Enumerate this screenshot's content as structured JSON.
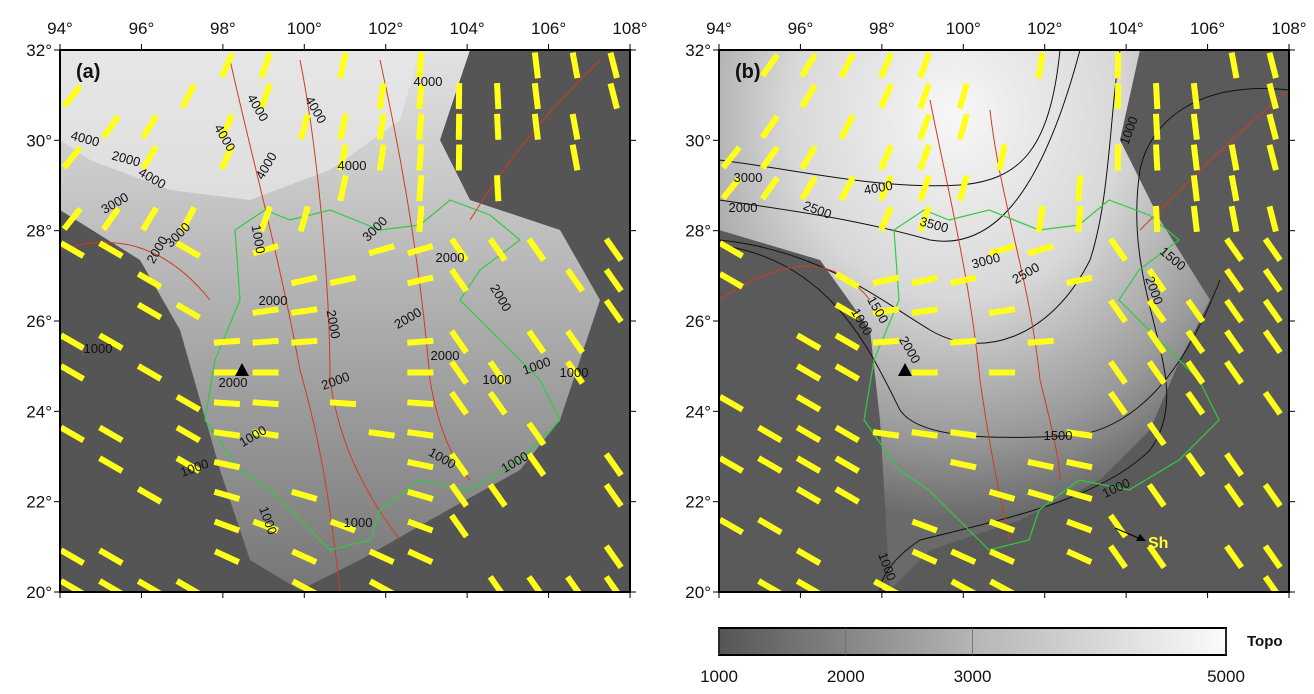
{
  "panels": [
    {
      "label": "(a)",
      "xticks": [
        {
          "value": 94,
          "label": "94°"
        },
        {
          "value": 96,
          "label": "96°"
        },
        {
          "value": 98,
          "label": "98°"
        },
        {
          "value": 100,
          "label": "100°"
        },
        {
          "value": 102,
          "label": "102°"
        },
        {
          "value": 104,
          "label": "104°"
        },
        {
          "value": 106,
          "label": "106°"
        },
        {
          "value": 108,
          "label": "108°"
        }
      ],
      "yticks": [
        {
          "value": 20,
          "label": "20°"
        },
        {
          "value": 22,
          "label": "22°"
        },
        {
          "value": 24,
          "label": "24°"
        },
        {
          "value": 26,
          "label": "26°"
        },
        {
          "value": 28,
          "label": "28°"
        },
        {
          "value": 30,
          "label": "30°"
        },
        {
          "value": 32,
          "label": "32°"
        }
      ],
      "xlim": [
        94,
        108
      ],
      "ylim": [
        20,
        32
      ],
      "contour_labels": [
        "4000",
        "4000",
        "4000",
        "4000",
        "4000",
        "4000",
        "4000",
        "2000",
        "4000",
        "3000",
        "3000",
        "3000",
        "2000",
        "2000",
        "2000",
        "2000",
        "2000",
        "2000",
        "2000",
        "2000",
        "2000",
        "1000",
        "1000",
        "1000",
        "1000",
        "1000",
        "1000",
        "1000",
        "1000",
        "1000",
        "1000",
        "1000"
      ]
    },
    {
      "label": "(b)",
      "xticks": [
        {
          "value": 94,
          "label": "94°"
        },
        {
          "value": 96,
          "label": "96°"
        },
        {
          "value": 98,
          "label": "98°"
        },
        {
          "value": 100,
          "label": "100°"
        },
        {
          "value": 102,
          "label": "102°"
        },
        {
          "value": 104,
          "label": "104°"
        },
        {
          "value": 106,
          "label": "106°"
        },
        {
          "value": 108,
          "label": "108°"
        }
      ],
      "yticks": [
        {
          "value": 20,
          "label": "20°"
        },
        {
          "value": 22,
          "label": "22°"
        },
        {
          "value": 24,
          "label": "24°"
        },
        {
          "value": 26,
          "label": "26°"
        },
        {
          "value": 28,
          "label": "28°"
        },
        {
          "value": 30,
          "label": "30°"
        },
        {
          "value": 32,
          "label": "32°"
        }
      ],
      "xlim": [
        94,
        108
      ],
      "ylim": [
        20,
        32
      ],
      "contour_labels": [
        "3000",
        "2000",
        "2500",
        "4000",
        "3500",
        "3000",
        "2500",
        "2000",
        "1500",
        "1000",
        "1500",
        "1000",
        "2000",
        "1500",
        "1000",
        "1000"
      ],
      "annotation": "Sh"
    }
  ],
  "colorbar": {
    "label": "Topo",
    "lim": [
      1000,
      5000
    ],
    "ticks": [
      1000,
      2000,
      3000,
      5000
    ]
  }
}
